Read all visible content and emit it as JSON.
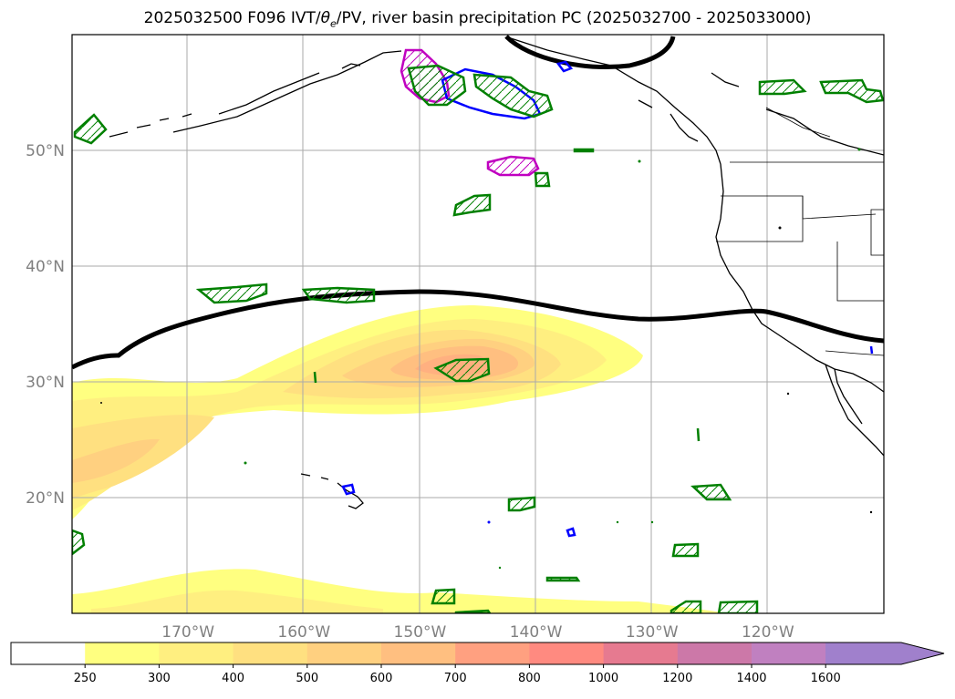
{
  "title": {
    "prefix": "2025032500 F096 IVT/",
    "theta_symbol": "θ",
    "theta_sub": "e",
    "suffix": "/PV, river basin precipitation PC (2025032700 - 2025033000)"
  },
  "map": {
    "projection": "PlateCarree",
    "extent": {
      "lon_min": -180,
      "lon_max": -110,
      "lat_min": 10,
      "lat_max": 60
    },
    "lat_ticks": [
      {
        "lat": 50,
        "label": "50°N"
      },
      {
        "lat": 40,
        "label": "40°N"
      },
      {
        "lat": 30,
        "label": "30°N"
      },
      {
        "lat": 20,
        "label": "20°N"
      }
    ],
    "lon_ticks": [
      {
        "lon": -170,
        "label": "170°W"
      },
      {
        "lon": -160,
        "label": "160°W"
      },
      {
        "lon": -150,
        "label": "150°W"
      },
      {
        "lon": -140,
        "label": "140°W"
      },
      {
        "lon": -130,
        "label": "130°W"
      },
      {
        "lon": -120,
        "label": "120°W"
      }
    ],
    "gridlines": true,
    "colors": {
      "pv_contour": "#008000",
      "theta_contour": "#0000ff",
      "magenta_contour": "#c000c0",
      "jet_line": "#000000",
      "coast": "#000000"
    }
  },
  "colorbar": {
    "levels": [
      "250",
      "300",
      "400",
      "500",
      "600",
      "700",
      "800",
      "1000",
      "1200",
      "1400",
      "1600"
    ],
    "colors": [
      "#ffffff",
      "#ffff80",
      "#ffef80",
      "#ffe080",
      "#ffd080",
      "#ffbf80",
      "#ffa080",
      "#ff8a80",
      "#e67a90",
      "#cc78a8",
      "#c080c0",
      "#a080cc"
    ],
    "extend": "max"
  }
}
